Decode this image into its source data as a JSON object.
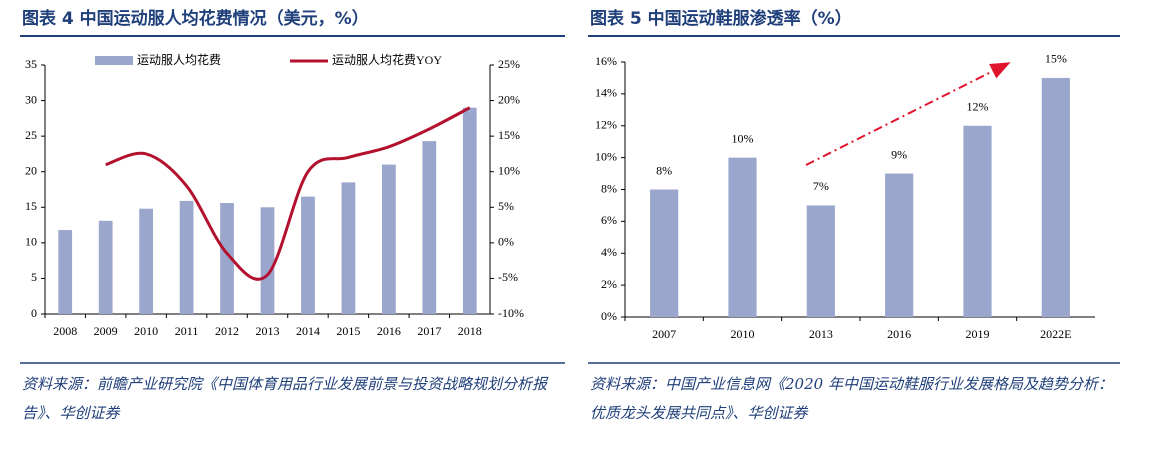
{
  "chart_data": [
    {
      "type": "bar",
      "title": "图表 4   中国运动服人均花费情况（美元，%）",
      "categories": [
        "2008",
        "2009",
        "2010",
        "2011",
        "2012",
        "2013",
        "2014",
        "2015",
        "2016",
        "2017",
        "2018"
      ],
      "series": [
        {
          "name": "运动服人均花费",
          "color": "#9ba6cd",
          "type": "bar",
          "values": [
            11.8,
            13.1,
            14.8,
            15.9,
            15.6,
            15.0,
            16.5,
            18.5,
            21.0,
            24.3,
            29.0
          ]
        },
        {
          "name": "运动服人均花费YOY",
          "color": "#b3112e",
          "type": "line",
          "axis": "y2",
          "values": [
            null,
            11,
            12.5,
            8,
            -1.5,
            -4.5,
            10,
            12,
            13.5,
            16,
            19
          ]
        }
      ],
      "ylim": [
        0,
        35
      ],
      "yticks": [
        0,
        5,
        10,
        15,
        20,
        25,
        30,
        35
      ],
      "y2lim": [
        -10,
        25
      ],
      "y2ticks": [
        {
          "value": -10,
          "label": "-10%"
        },
        {
          "value": -5,
          "label": "-5%"
        },
        {
          "value": 0,
          "label": "0%"
        },
        {
          "value": 5,
          "label": "5%"
        },
        {
          "value": 10,
          "label": "10%"
        },
        {
          "value": 15,
          "label": "15%"
        },
        {
          "value": 20,
          "label": "20%"
        },
        {
          "value": 25,
          "label": "25%"
        }
      ],
      "legend": "top",
      "source": "资料来源：前瞻产业研究院《中国体育用品行业发展前景与投资战略规划分析报告》、华创证券"
    },
    {
      "type": "bar",
      "title": "图表 5   中国运动鞋服渗透率（%）",
      "categories": [
        "2007",
        "2010",
        "2013",
        "2016",
        "2019",
        "2022E"
      ],
      "series": [
        {
          "color": "#9ba6cd",
          "type": "bar",
          "values": [
            8,
            10,
            7,
            9,
            12,
            15
          ],
          "value_labels": [
            "8%",
            "10%",
            "7%",
            "9%",
            "12%",
            "15%"
          ]
        }
      ],
      "ylim": [
        0,
        16
      ],
      "yticks": [
        {
          "value": 0,
          "label": "0%"
        },
        {
          "value": 2,
          "label": "2%"
        },
        {
          "value": 4,
          "label": "4%"
        },
        {
          "value": 6,
          "label": "6%"
        },
        {
          "value": 8,
          "label": "8%"
        },
        {
          "value": 10,
          "label": "10%"
        },
        {
          "value": 12,
          "label": "12%"
        },
        {
          "value": 14,
          "label": "14%"
        },
        {
          "value": 16,
          "label": "16%"
        }
      ],
      "source": "资料来源：中国产业信息网《2020 年中国运动鞋服行业发展格局及趋势分析：优质龙头发展共同点》、华创证券"
    }
  ]
}
